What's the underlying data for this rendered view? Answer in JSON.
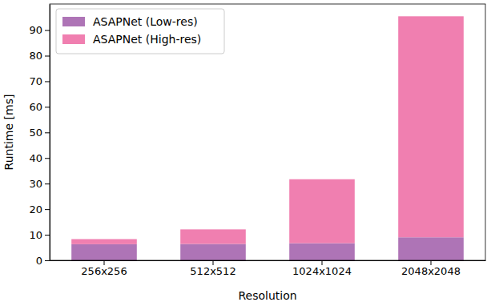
{
  "chart_data": {
    "type": "bar",
    "stacked": true,
    "legend": "upper-left",
    "x_label": "Resolution",
    "y_label": "Runtime [ms]",
    "categories": [
      "256x256",
      "512x512",
      "1024x1024",
      "2048x2048"
    ],
    "series": [
      {
        "name": "ASAPNet (Low-res)",
        "color": "#ae74b6",
        "values": [
          6.3,
          6.4,
          6.7,
          9.0
        ]
      },
      {
        "name": "ASAPNet (High-res)",
        "color": "#f07fb0",
        "values": [
          2.0,
          5.7,
          25.0,
          86.4
        ]
      }
    ],
    "ylim": [
      0,
      100.2
    ],
    "yticks": [
      0,
      10,
      20,
      30,
      40,
      50,
      60,
      70,
      80,
      90
    ]
  }
}
